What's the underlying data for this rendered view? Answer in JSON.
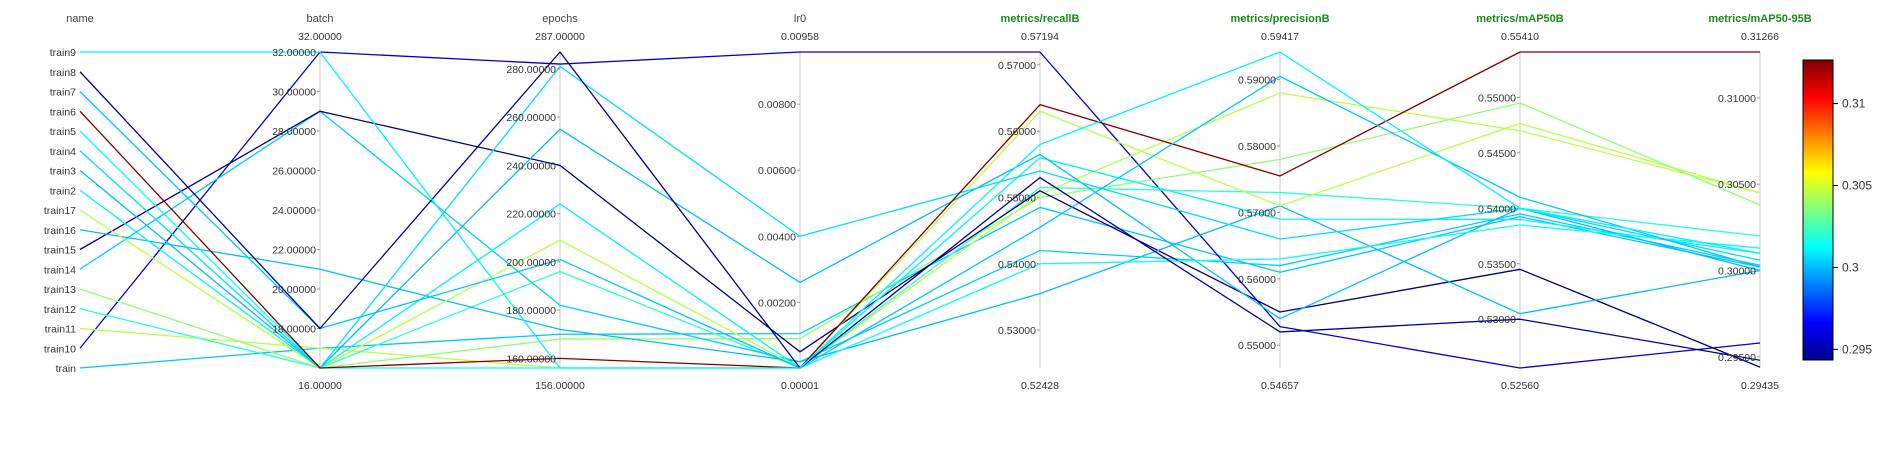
{
  "chart_data": {
    "type": "parallel_coordinates",
    "title": "",
    "colorbar": {
      "colormap": "jet",
      "min": 0.29435,
      "max": 0.31266,
      "ticks": [
        "0.31",
        "0.305",
        "0.3",
        "0.295"
      ]
    },
    "axes": [
      {
        "key": "name",
        "label": "name",
        "type": "categorical",
        "categories": [
          "train",
          "train10",
          "train11",
          "train12",
          "train13",
          "train14",
          "train15",
          "train16",
          "train17",
          "train2",
          "train3",
          "train4",
          "train5",
          "train6",
          "train7",
          "train8",
          "train9"
        ]
      },
      {
        "key": "batch",
        "label": "batch",
        "min": 16,
        "max": 32,
        "min_label": "16.00000",
        "max_label": "32.00000",
        "ticks": [
          "18.00000",
          "20.00000",
          "22.00000",
          "24.00000",
          "26.00000",
          "28.00000",
          "30.00000",
          "32.00000"
        ]
      },
      {
        "key": "epochs",
        "label": "epochs",
        "min": 156,
        "max": 287,
        "min_label": "156.00000",
        "max_label": "287.00000",
        "ticks": [
          "160.00000",
          "180.00000",
          "200.00000",
          "220.00000",
          "240.00000",
          "260.00000",
          "280.00000"
        ]
      },
      {
        "key": "lr0",
        "label": "lr0",
        "min": 1e-05,
        "max": 0.00958,
        "min_label": "0.00001",
        "max_label": "0.00958",
        "ticks": [
          "0.00200",
          "0.00400",
          "0.00600",
          "0.00800"
        ]
      },
      {
        "key": "recall",
        "label": "metrics/recallB",
        "metric": true,
        "min": 0.52428,
        "max": 0.57194,
        "min_label": "0.52428",
        "max_label": "0.57194",
        "ticks": [
          "0.53000",
          "0.54000",
          "0.55000",
          "0.56000",
          "0.57000"
        ]
      },
      {
        "key": "precision",
        "label": "metrics/precisionB",
        "metric": true,
        "min": 0.54657,
        "max": 0.59417,
        "min_label": "0.54657",
        "max_label": "0.59417",
        "ticks": [
          "0.55000",
          "0.56000",
          "0.57000",
          "0.58000",
          "0.59000"
        ]
      },
      {
        "key": "map50",
        "label": "metrics/mAP50B",
        "metric": true,
        "min": 0.5256,
        "max": 0.5541,
        "min_label": "0.52560",
        "max_label": "0.55410",
        "ticks": [
          "0.53000",
          "0.53500",
          "0.54000",
          "0.54500",
          "0.55000"
        ]
      },
      {
        "key": "map5095",
        "label": "metrics/mAP50-95B",
        "metric": true,
        "min": 0.29435,
        "max": 0.31266,
        "min_label": "0.29435",
        "max_label": "0.31266",
        "ticks": [
          "0.29500",
          "0.30000",
          "0.30500",
          "0.31000"
        ]
      }
    ],
    "series": [
      {
        "name": "train",
        "values": [
          0,
          17.0,
          170.0,
          0.00105,
          0.5485,
          0.561,
          0.53925,
          0.3002
        ]
      },
      {
        "name": "train10",
        "values": [
          1,
          32.0,
          282.0,
          0.00958,
          0.57194,
          0.5528,
          0.5256,
          0.2958
        ]
      },
      {
        "name": "train11",
        "values": [
          2,
          17.0,
          156.0,
          1e-05,
          0.5505,
          0.588,
          0.547,
          0.3045
        ]
      },
      {
        "name": "train12",
        "values": [
          3,
          16.0,
          196.0,
          1e-05,
          0.5515,
          0.573,
          0.54,
          0.302
        ]
      },
      {
        "name": "train13",
        "values": [
          4,
          16.0,
          168.0,
          0.0009,
          0.55,
          0.578,
          0.5495,
          0.3038
        ]
      },
      {
        "name": "train14",
        "values": [
          5,
          29.0,
          182.0,
          0.0002,
          0.542,
          0.562,
          0.5395,
          0.3003
        ]
      },
      {
        "name": "train15",
        "values": [
          6,
          29.0,
          240.0,
          0.0005,
          0.551,
          0.555,
          0.5345,
          0.2944
        ]
      },
      {
        "name": "train16",
        "values": [
          7,
          21.0,
          172.0,
          0.0002,
          0.5355,
          0.571,
          0.5305,
          0.3
        ]
      },
      {
        "name": "train17",
        "values": [
          8,
          16.0,
          209.0,
          1e-05,
          0.563,
          0.571,
          0.54765,
          0.3045
        ]
      },
      {
        "name": "train2",
        "values": [
          9,
          16.0,
          224.0,
          1e-05,
          0.556,
          0.569,
          0.539,
          0.301
        ]
      },
      {
        "name": "train3",
        "values": [
          10,
          16.0,
          255.0,
          0.0026,
          0.5565,
          0.554,
          0.54,
          0.3
        ]
      },
      {
        "name": "train4",
        "values": [
          11,
          16.0,
          281.0,
          0.004,
          0.554,
          0.566,
          0.54,
          0.3006
        ]
      },
      {
        "name": "train5",
        "values": [
          12,
          16.0,
          156.0,
          1e-05,
          0.54,
          0.563,
          0.5385,
          0.3013
        ]
      },
      {
        "name": "train6",
        "values": [
          13,
          16.0,
          160.0,
          1e-05,
          0.564,
          0.5755,
          0.5541,
          0.31266
        ]
      },
      {
        "name": "train7",
        "values": [
          14,
          18.0,
          201.0,
          1e-05,
          0.5455,
          0.5905,
          0.541,
          0.3002
        ]
      },
      {
        "name": "train8",
        "values": [
          15,
          18.0,
          287.0,
          1e-05,
          0.553,
          0.552,
          0.53,
          0.2948
        ]
      },
      {
        "name": "train9",
        "values": [
          16,
          32.0,
          156.0,
          1e-05,
          0.558,
          0.59417,
          0.54,
          0.301
        ]
      }
    ]
  }
}
